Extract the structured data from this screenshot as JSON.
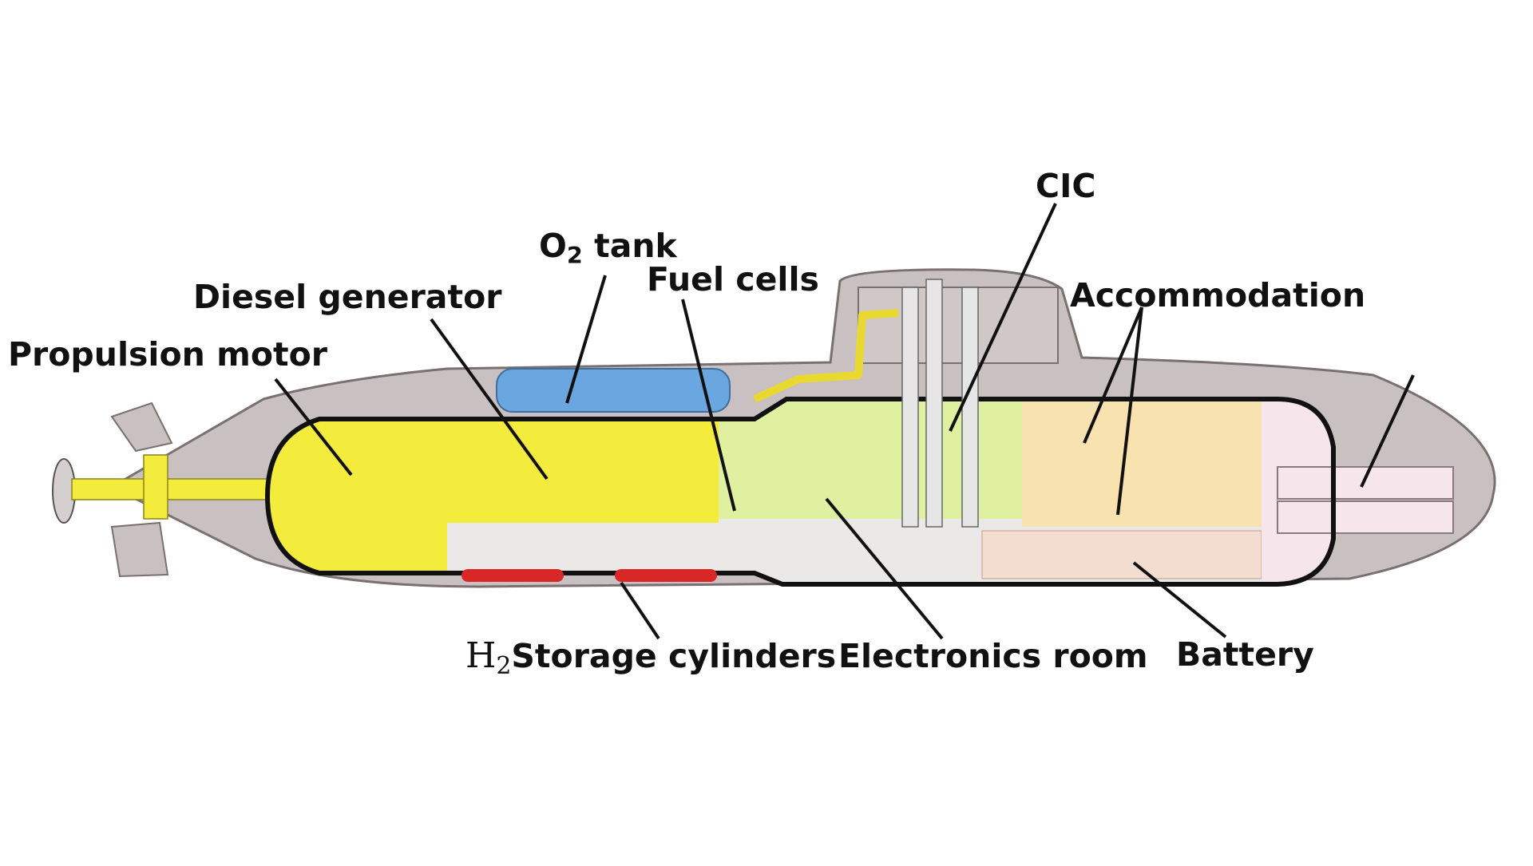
{
  "labels": {
    "propulsion_motor": "Propulsion motor",
    "diesel_generator": "Diesel generator",
    "o2_tank_main": "O",
    "o2_tank_sub": "2",
    "o2_tank_rest": " tank",
    "fuel_cells": "Fuel cells",
    "cic": "CIC",
    "accommodation": "Accommodation",
    "h2_main": "H",
    "h2_sub": "2",
    "h2_rest": "Storage cylinders",
    "electronics_room": "Electronics room",
    "battery": "Battery"
  },
  "colors": {
    "hull_outer": "#c9c0c1",
    "hull_outline": "#7a7070",
    "pressure_hull": "#111111",
    "engine_zone": "#f4ec3c",
    "fuel_cell_zone": "#dff0a0",
    "accommodation_zone": "#f8e2b0",
    "torpedo_zone": "#f6e6ec",
    "o2_tank": "#6aa6e0",
    "h2_cylinders": "#d92626",
    "lower_deck": "#ebe8e8",
    "leader_lines": "#111111"
  }
}
